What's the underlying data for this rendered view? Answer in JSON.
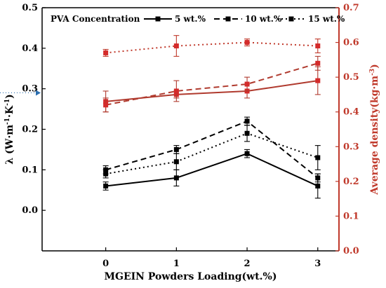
{
  "chart_data": {
    "type": "line",
    "title": "",
    "legend": {
      "title": "PVA Concentration",
      "placement": "top",
      "entries": [
        {
          "label": "5 wt.%",
          "dash": "solid"
        },
        {
          "label": "10 wt.%",
          "dash": "dashed"
        },
        {
          "label": "15 wt.%",
          "dash": "dotted"
        }
      ]
    },
    "x": [
      0,
      1,
      2,
      3
    ],
    "xlabel": "MGEIN Powders Loading(wt.%)",
    "xticks": [
      "0",
      "1",
      "2",
      "3"
    ],
    "xlim": [
      -0.9,
      3.3
    ],
    "y_left": {
      "label_parts": [
        "λ (W·m",
        "-1",
        "·K",
        "-1",
        ")"
      ],
      "lim": [
        -0.1,
        0.5
      ],
      "ticks": [
        "0.0",
        "0.1",
        "0.2",
        "0.3",
        "0.4",
        "0.5"
      ],
      "color": "#000000"
    },
    "y_right": {
      "label_parts": [
        "Average density(kg·m",
        "-3",
        ")"
      ],
      "lim": [
        0.0,
        0.7
      ],
      "ticks": [
        "0.0",
        "0.1",
        "0.2",
        "0.3",
        "0.4",
        "0.5",
        "0.6",
        "0.7"
      ],
      "color": "#c0392b"
    },
    "series": [
      {
        "name": "5 wt.%",
        "axis": "left",
        "dash": "solid",
        "color": "#000000",
        "values": [
          0.06,
          0.08,
          0.14,
          0.06
        ],
        "errors": [
          0.01,
          0.02,
          0.01,
          0.03
        ]
      },
      {
        "name": "10 wt.%",
        "axis": "left",
        "dash": "dashed",
        "color": "#000000",
        "values": [
          0.1,
          0.15,
          0.22,
          0.08
        ],
        "errors": [
          0.01,
          0.01,
          0.01,
          0.01
        ]
      },
      {
        "name": "15 wt.%",
        "axis": "left",
        "dash": "dotted",
        "color": "#000000",
        "values": [
          0.09,
          0.12,
          0.19,
          0.13
        ],
        "errors": [
          0.01,
          0.02,
          0.02,
          0.03
        ]
      },
      {
        "name": "5 wt.%",
        "axis": "right",
        "dash": "solid",
        "color": "#b03a2e",
        "values": [
          0.43,
          0.45,
          0.46,
          0.49
        ],
        "errors": [
          0.03,
          0.01,
          0.02,
          0.04
        ]
      },
      {
        "name": "10 wt.%",
        "axis": "right",
        "dash": "dashed",
        "color": "#b03a2e",
        "values": [
          0.42,
          0.46,
          0.48,
          0.54
        ],
        "errors": [
          0.02,
          0.03,
          0.02,
          0.02
        ]
      },
      {
        "name": "15 wt.%",
        "axis": "right",
        "dash": "dotted",
        "color": "#c0392b",
        "values": [
          0.57,
          0.59,
          0.6,
          0.59
        ],
        "errors": [
          0.01,
          0.03,
          0.01,
          0.02
        ]
      }
    ],
    "annotations": [
      "dotted horizontal arrow pointing to left axis near λ 0.29"
    ],
    "grid": false
  }
}
